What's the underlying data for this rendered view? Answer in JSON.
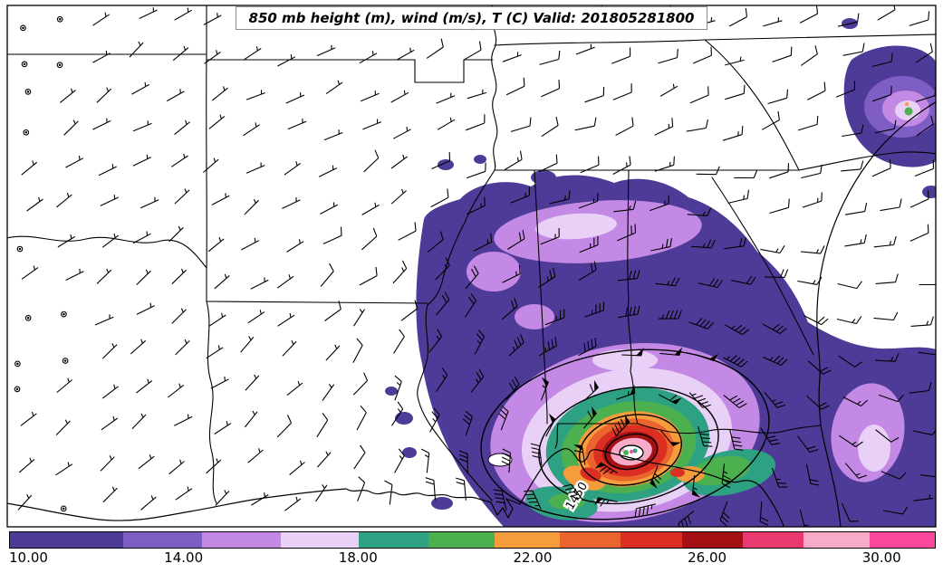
{
  "title": "850 mb height (m), wind (m/s), T (C) Valid: 201805281800",
  "palette": {
    "purple_dark": "#4e3b98",
    "purple_mid": "#7e5ec5",
    "violet_light": "#c389e4",
    "lilac_pale": "#e9d0f6",
    "teal": "#2fa183",
    "green": "#4db04f",
    "orange": "#f59c3c",
    "orange_deep": "#ec642d",
    "red": "#dc2f23",
    "red_dark": "#a31115",
    "rose": "#e83a6e",
    "pink": "#f8abc8",
    "magenta": "#f9479e",
    "white": "#ffffff",
    "line": "#000000"
  },
  "map": {
    "contour_labels": [
      {
        "text": "1450"
      }
    ]
  },
  "chart_data": {
    "type": "heatmap",
    "title": "850 mb height (m), wind (m/s), T (C) Valid: 201805281800",
    "level": "850 mb",
    "valid_time": "201805281800",
    "fields": [
      {
        "name": "temperature",
        "units": "C",
        "render": "filled contours"
      },
      {
        "name": "geopotential height",
        "units": "m",
        "render": "black contour lines",
        "labeled_contours": [
          1450
        ]
      },
      {
        "name": "wind",
        "units": "m/s",
        "render": "barbs, calm circles in west, pennants near storm center"
      }
    ],
    "colorbar": {
      "orientation": "horizontal",
      "range": [
        10,
        31.2
      ],
      "ticks": [
        {
          "value": 10,
          "label": "10.00"
        },
        {
          "value": 14,
          "label": "14.00"
        },
        {
          "value": 18,
          "label": "18.00"
        },
        {
          "value": 22,
          "label": "22.00"
        },
        {
          "value": 26,
          "label": "26.00"
        },
        {
          "value": 30,
          "label": "30.00"
        }
      ],
      "segments": [
        {
          "from": 10.0,
          "to": 12.6,
          "color": "#4e3b98"
        },
        {
          "from": 12.6,
          "to": 14.4,
          "color": "#7e5ec5"
        },
        {
          "from": 14.4,
          "to": 16.2,
          "color": "#c389e4"
        },
        {
          "from": 16.2,
          "to": 18.0,
          "color": "#e9d0f6"
        },
        {
          "from": 18.0,
          "to": 19.6,
          "color": "#2fa183"
        },
        {
          "from": 19.6,
          "to": 21.1,
          "color": "#4db04f"
        },
        {
          "from": 21.1,
          "to": 22.6,
          "color": "#f59c3c"
        },
        {
          "from": 22.6,
          "to": 24.0,
          "color": "#ec642d"
        },
        {
          "from": 24.0,
          "to": 25.4,
          "color": "#dc2f23"
        },
        {
          "from": 25.4,
          "to": 26.8,
          "color": "#a31115"
        },
        {
          "from": 26.8,
          "to": 28.2,
          "color": "#e83a6e"
        },
        {
          "from": 28.2,
          "to": 29.7,
          "color": "#f8abc8"
        },
        {
          "from": 29.7,
          "to": 31.2,
          "color": "#f9479e"
        }
      ]
    },
    "notes": {
      "storm": "Closed warm-core low centered near FL panhandle / SW Georgia; concentric height contours (1450 m labeled) with temps 22-30 C in rings around center",
      "cool_air": "Widespread 12-18 C (purple/violet) air over AL, GA, TN and off the southeast coast; second purple pocket near the Carolina coast (top right)",
      "winds": "Cyclonic barbs up to 50+ around the low; light winds / calm circles over Texas and Oklahoma"
    }
  }
}
